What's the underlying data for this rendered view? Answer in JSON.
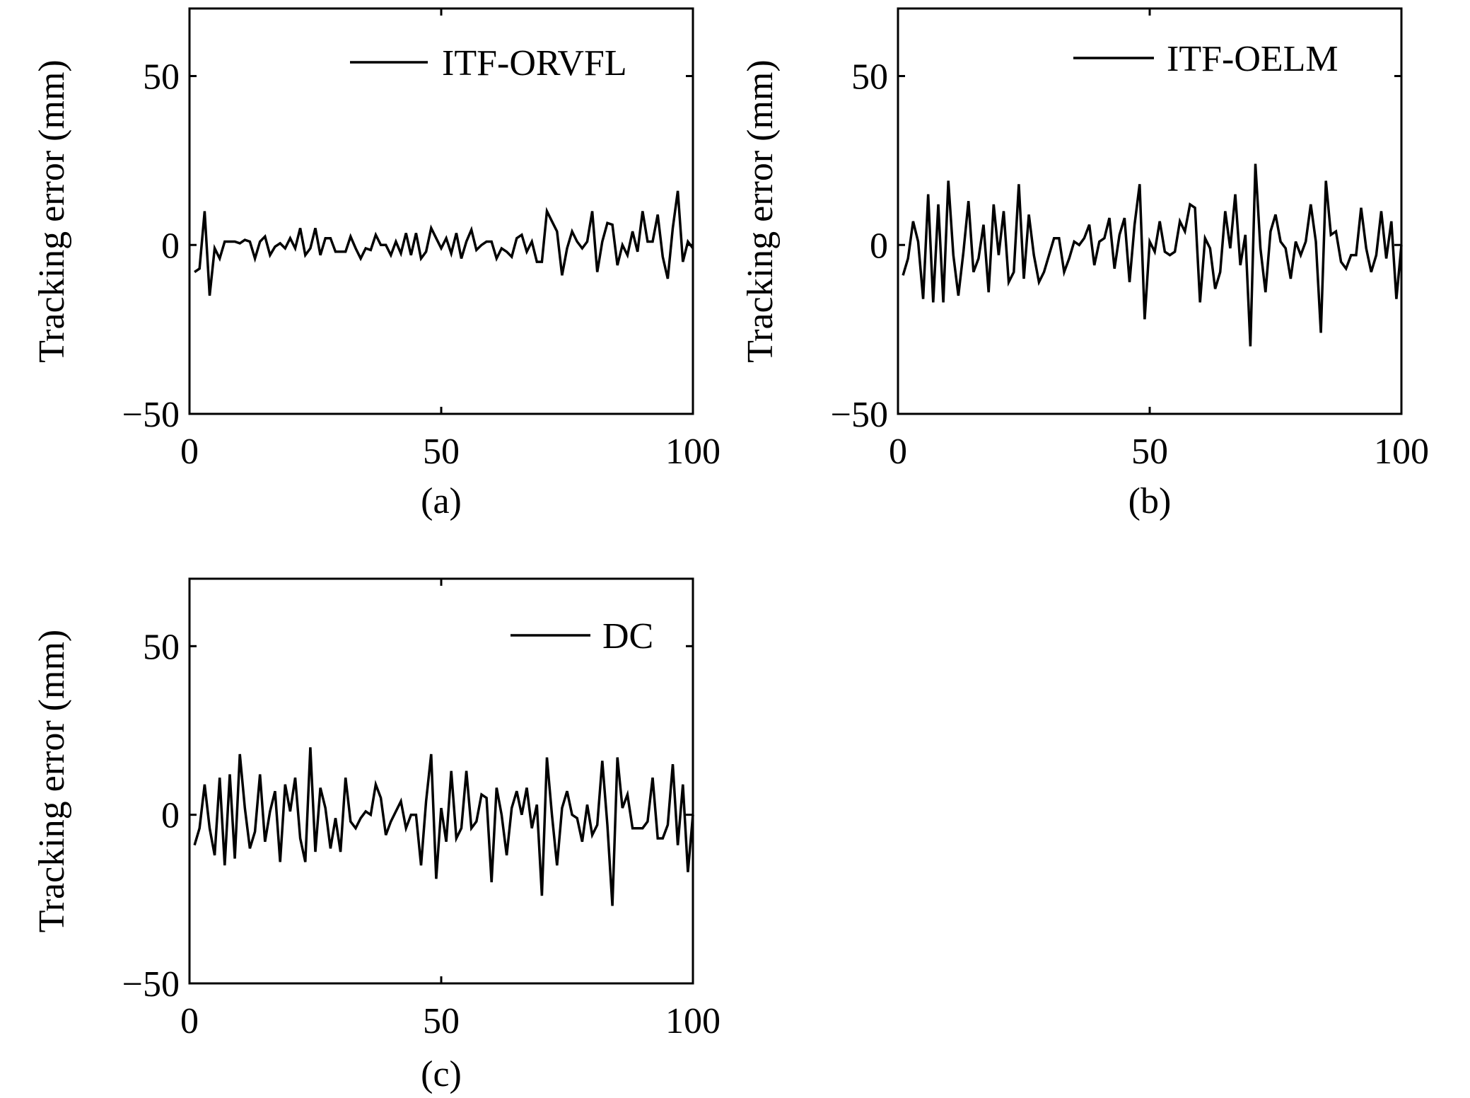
{
  "chart_data": [
    {
      "type": "line",
      "panel_caption": "(a)",
      "ylabel": "Tracking error (mm)",
      "xlim": [
        0,
        100
      ],
      "ylim": [
        -50,
        70
      ],
      "xticks": [
        0,
        50,
        100
      ],
      "yticks": [
        -50,
        0,
        50
      ],
      "xtick_labels": [
        "0",
        "50",
        "100"
      ],
      "ytick_labels": [
        "−50",
        "0",
        "50"
      ],
      "legend_position": "top-right",
      "grid": false,
      "series": [
        {
          "name": "ITF-ORVFL",
          "color": "#000000",
          "x": [
            1,
            2,
            3,
            4,
            5,
            6,
            7,
            8,
            9,
            10,
            11,
            12,
            13,
            14,
            15,
            16,
            17,
            18,
            19,
            20,
            21,
            22,
            23,
            24,
            25,
            26,
            27,
            28,
            29,
            30,
            31,
            32,
            33,
            34,
            35,
            36,
            37,
            38,
            39,
            40,
            41,
            42,
            43,
            44,
            45,
            46,
            47,
            48,
            49,
            50,
            51,
            52,
            53,
            54,
            55,
            56,
            57,
            58,
            59,
            60,
            61,
            62,
            63,
            64,
            65,
            66,
            67,
            68,
            69,
            70,
            71,
            72,
            73,
            74,
            75,
            76,
            77,
            78,
            79,
            80,
            81,
            82,
            83,
            84,
            85,
            86,
            87,
            88,
            89,
            90,
            91,
            92,
            93,
            94,
            95,
            96,
            97,
            98,
            99,
            100
          ],
          "values": [
            -8,
            -7,
            10,
            -15,
            -1,
            -4,
            1,
            1,
            1,
            0.5,
            1.5,
            1,
            -4,
            1,
            2.5,
            -3,
            -0.5,
            0.5,
            -1,
            2,
            -1,
            5,
            -3,
            -1,
            5,
            -3,
            2,
            2,
            -2,
            -2,
            -2,
            2.5,
            -1,
            -4,
            -1,
            -1.5,
            3,
            0,
            0,
            -3,
            1,
            -2.5,
            3.5,
            -3,
            3.5,
            -4,
            -2,
            5,
            2,
            -1,
            2,
            -2.5,
            3.5,
            -4,
            1,
            4.5,
            -1.5,
            0,
            1,
            1,
            -4,
            -1,
            -2,
            -3.5,
            2,
            3,
            -2,
            1,
            -5,
            -5,
            10,
            7,
            4,
            -9,
            -1,
            4,
            1,
            -1,
            1,
            10,
            -8,
            1,
            6.5,
            6,
            -6,
            0,
            -3,
            4,
            -2,
            10,
            1,
            1,
            9,
            -3.5,
            -10,
            5,
            16,
            -5,
            1,
            -1
          ]
        }
      ]
    },
    {
      "type": "line",
      "panel_caption": "(b)",
      "ylabel": "Tracking error (mm)",
      "xlim": [
        0,
        100
      ],
      "ylim": [
        -50,
        70
      ],
      "xticks": [
        0,
        50,
        100
      ],
      "yticks": [
        -50,
        0,
        50
      ],
      "xtick_labels": [
        "0",
        "50",
        "100"
      ],
      "ytick_labels": [
        "−50",
        "0",
        "50"
      ],
      "legend_position": "top-right",
      "grid": false,
      "series": [
        {
          "name": "ITF-OELM",
          "color": "#000000",
          "x": [
            1,
            2,
            3,
            4,
            5,
            6,
            7,
            8,
            9,
            10,
            11,
            12,
            13,
            14,
            15,
            16,
            17,
            18,
            19,
            20,
            21,
            22,
            23,
            24,
            25,
            26,
            27,
            28,
            29,
            30,
            31,
            32,
            33,
            34,
            35,
            36,
            37,
            38,
            39,
            40,
            41,
            42,
            43,
            44,
            45,
            46,
            47,
            48,
            49,
            50,
            51,
            52,
            53,
            54,
            55,
            56,
            57,
            58,
            59,
            60,
            61,
            62,
            63,
            64,
            65,
            66,
            67,
            68,
            69,
            70,
            71,
            72,
            73,
            74,
            75,
            76,
            77,
            78,
            79,
            80,
            81,
            82,
            83,
            84,
            85,
            86,
            87,
            88,
            89,
            90,
            91,
            92,
            93,
            94,
            95,
            96,
            97,
            98,
            99,
            100
          ],
          "values": [
            -9,
            -4,
            7,
            1,
            -16,
            15,
            -17,
            12,
            -17,
            19,
            -3,
            -15,
            -2,
            13,
            -8,
            -4,
            6,
            -14,
            12,
            -3,
            10,
            -11,
            -8,
            18,
            -10,
            9,
            -3,
            -11,
            -8,
            -3,
            2,
            2,
            -8,
            -4,
            1,
            0,
            2,
            6,
            -6,
            1,
            2,
            8,
            -7,
            3,
            8,
            -11,
            6,
            18,
            -22,
            1,
            -2,
            7,
            -2,
            -3,
            -2,
            7,
            4,
            12,
            11,
            -17,
            2,
            -1,
            -13,
            -8,
            10,
            -1,
            15,
            -6,
            3,
            -30,
            24,
            -1,
            -14,
            4,
            9,
            1,
            -1,
            -10,
            1,
            -3,
            1,
            12,
            1,
            -26,
            19,
            3,
            4,
            -5,
            -7,
            -3,
            -3,
            11,
            -1,
            -8,
            -3,
            10,
            -4,
            7,
            -16,
            0
          ]
        }
      ]
    },
    {
      "type": "line",
      "panel_caption": "(c)",
      "ylabel": "Tracking error (mm)",
      "xlim": [
        0,
        100
      ],
      "ylim": [
        -50,
        70
      ],
      "xticks": [
        0,
        50,
        100
      ],
      "yticks": [
        -50,
        0,
        50
      ],
      "xtick_labels": [
        "0",
        "50",
        "100"
      ],
      "ytick_labels": [
        "−50",
        "0",
        "50"
      ],
      "legend_position": "top-right",
      "grid": false,
      "series": [
        {
          "name": "DC",
          "color": "#000000",
          "x": [
            1,
            2,
            3,
            4,
            5,
            6,
            7,
            8,
            9,
            10,
            11,
            12,
            13,
            14,
            15,
            16,
            17,
            18,
            19,
            20,
            21,
            22,
            23,
            24,
            25,
            26,
            27,
            28,
            29,
            30,
            31,
            32,
            33,
            34,
            35,
            36,
            37,
            38,
            39,
            40,
            41,
            42,
            43,
            44,
            45,
            46,
            47,
            48,
            49,
            50,
            51,
            52,
            53,
            54,
            55,
            56,
            57,
            58,
            59,
            60,
            61,
            62,
            63,
            64,
            65,
            66,
            67,
            68,
            69,
            70,
            71,
            72,
            73,
            74,
            75,
            76,
            77,
            78,
            79,
            80,
            81,
            82,
            83,
            84,
            85,
            86,
            87,
            88,
            89,
            90,
            91,
            92,
            93,
            94,
            95,
            96,
            97,
            98,
            99,
            100
          ],
          "values": [
            -9,
            -4,
            9,
            -4,
            -12,
            11,
            -15,
            12,
            -13,
            18,
            2,
            -10,
            -5,
            12,
            -8,
            1,
            7,
            -14,
            9,
            1,
            11,
            -7,
            -14,
            20,
            -11,
            8,
            2,
            -10,
            -1,
            -11,
            11,
            -2,
            -4,
            -1,
            1,
            0,
            9,
            5,
            -6,
            -2,
            1,
            4,
            -4,
            0,
            0,
            -15,
            4,
            18,
            -19,
            2,
            -8,
            13,
            -7,
            -4,
            13,
            -4,
            -2,
            6,
            5,
            -20,
            8,
            0,
            -12,
            2,
            7,
            0,
            8,
            -4,
            3,
            -24,
            17,
            0,
            -15,
            2,
            7,
            0,
            -1,
            -8,
            3,
            -6,
            -3,
            16,
            -3,
            -27,
            17,
            2,
            6,
            -4,
            -4,
            -4,
            -2,
            11,
            -7,
            -7,
            -3,
            15,
            -9,
            9,
            -17,
            0
          ]
        }
      ]
    }
  ]
}
